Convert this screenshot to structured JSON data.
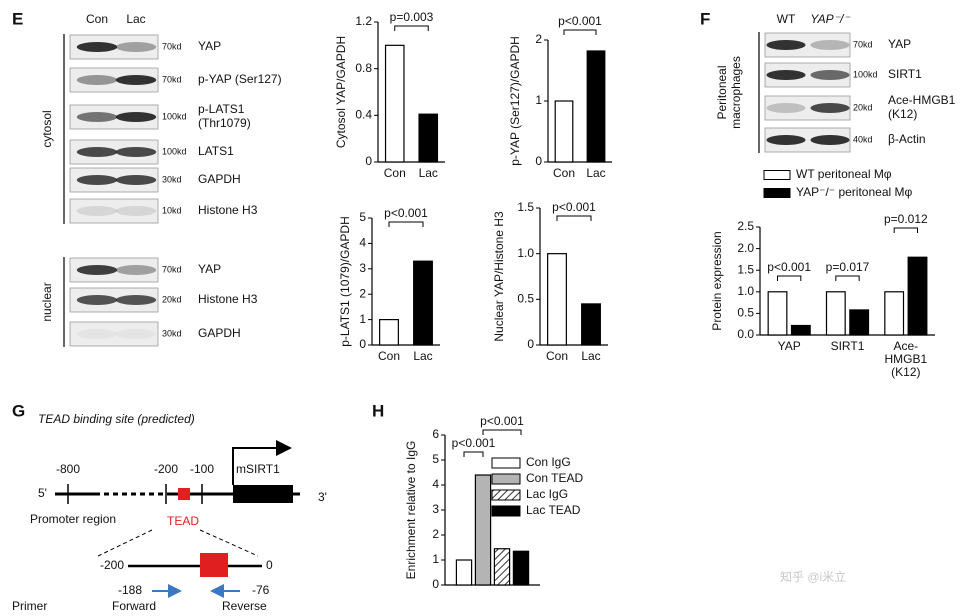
{
  "panel_labels": [
    "E",
    "F",
    "G",
    "H"
  ],
  "blots": [
    {
      "lanes": [
        "Con",
        "Lac"
      ],
      "groups": [
        {
          "name": "cytosol",
          "rows": [
            {
              "protein": "YAP",
              "marker": "70kd"
            },
            {
              "protein": "p-YAP (Ser127)",
              "marker": "70kd"
            },
            {
              "protein": "p-LATS1 (Thr1079)",
              "marker": "100kd"
            },
            {
              "protein": "LATS1",
              "marker": "100kd"
            },
            {
              "protein": "GAPDH",
              "marker": "30kd"
            },
            {
              "protein": "Histone H3",
              "marker": "10kd"
            }
          ]
        },
        {
          "name": "nuclear",
          "rows": [
            {
              "protein": "YAP",
              "marker": "70kd"
            },
            {
              "protein": "Histone H3",
              "marker": "20kd"
            },
            {
              "protein": "GAPDH",
              "marker": "30kd"
            }
          ]
        }
      ]
    },
    {
      "lanes": [
        "WT",
        "YAP⁻/⁻"
      ],
      "groups": [
        {
          "name": "Peritoneal macrophages",
          "rows": [
            {
              "protein": "YAP",
              "marker": "70kd"
            },
            {
              "protein": "SIRT1",
              "marker": "100kd"
            },
            {
              "protein": "Ace-HMGB1 (K12)",
              "marker": "20kd"
            },
            {
              "protein": "β-Actin",
              "marker": "40kd"
            }
          ]
        }
      ]
    }
  ],
  "chart_data": [
    {
      "type": "bar",
      "y_label": "Cytosol YAP/GAPDH",
      "categories": [
        "Con",
        "Lac"
      ],
      "values": [
        1.0,
        0.41
      ],
      "colors": [
        "#ffffff",
        "#000000"
      ],
      "ylim": [
        0,
        1.2
      ],
      "yticks": [
        0,
        0.4,
        0.8,
        1.2
      ],
      "annotations": [
        "p=0.003"
      ]
    },
    {
      "type": "bar",
      "y_label": "p-YAP (Ser127)/GAPDH",
      "categories": [
        "Con",
        "Lac"
      ],
      "values": [
        1.0,
        1.82
      ],
      "colors": [
        "#ffffff",
        "#000000"
      ],
      "ylim": [
        0,
        2
      ],
      "yticks": [
        0,
        1,
        2
      ],
      "annotations": [
        "p<0.001"
      ]
    },
    {
      "type": "bar",
      "y_label": "p-LATS1 (1079)/GAPDH",
      "categories": [
        "Con",
        "Lac"
      ],
      "values": [
        1.0,
        3.3
      ],
      "colors": [
        "#ffffff",
        "#000000"
      ],
      "ylim": [
        0,
        5
      ],
      "yticks": [
        0,
        1,
        2,
        3,
        4,
        5
      ],
      "annotations": [
        "p<0.001"
      ]
    },
    {
      "type": "bar",
      "y_label": "Nuclear YAP/Histone H3",
      "categories": [
        "Con",
        "Lac"
      ],
      "values": [
        1.0,
        0.45
      ],
      "colors": [
        "#ffffff",
        "#000000"
      ],
      "ylim": [
        0,
        1.5
      ],
      "yticks": [
        0,
        0.5,
        {
          "value": 1,
          "label": "1.0"
        },
        1.5
      ],
      "annotations": [
        "p<0.001"
      ]
    },
    {
      "type": "bar",
      "y_label": "Protein expression",
      "categories": [
        "YAP",
        "SIRT1",
        "Ace-HMGB1 (K12)"
      ],
      "series": [
        {
          "name": "WT peritoneal Mφ",
          "color": "#ffffff",
          "values": [
            1.0,
            1.0,
            1.0
          ]
        },
        {
          "name": "YAP⁻/⁻ peritoneal Mφ",
          "color": "#000000",
          "values": [
            0.22,
            0.58,
            1.8
          ]
        }
      ],
      "ylim": [
        0,
        2.5
      ],
      "yticks": [
        {
          "value": 0,
          "label": "0.0"
        },
        0.5,
        {
          "value": 1,
          "label": "1.0"
        },
        1.5,
        {
          "value": 2,
          "label": "2.0"
        },
        2.5
      ],
      "annotations": [
        "p<0.001",
        "p=0.017",
        "p=0.012"
      ]
    },
    {
      "type": "bar",
      "y_label": "Enrichment relative to IgG",
      "categories": [
        null
      ],
      "series": [
        {
          "name": "Con IgG",
          "color": "#ffffff",
          "values": [
            1.0
          ]
        },
        {
          "name": "Con TEAD",
          "color": "#b4b4b4",
          "values": [
            4.4
          ]
        },
        {
          "name": "Lac IgG",
          "color": "#ffffff",
          "pattern": "hatch",
          "values": [
            1.45
          ]
        },
        {
          "name": "Lac TEAD",
          "color": "#000000",
          "values": [
            1.35
          ]
        }
      ],
      "ylim": [
        0,
        6
      ],
      "yticks": [
        0,
        1,
        2,
        3,
        4,
        5,
        6
      ],
      "annotations": [
        "p<0.001",
        "p<0.001"
      ]
    }
  ],
  "diagram": {
    "title": "TEAD binding site (predicted)",
    "positions": [
      "-800",
      "-200",
      "-100"
    ],
    "gene": "mSIRT1",
    "five_prime": "5'",
    "three_prime": "3'",
    "region": "Promoter region",
    "site": "TEAD",
    "zoom_start": "-200",
    "zoom_end": "0",
    "primer_label": "Primer",
    "forward": {
      "position": "-188",
      "name": "Forward"
    },
    "reverse": {
      "position": "-76",
      "name": "Reverse"
    }
  },
  "watermark": "知乎 @i米立"
}
